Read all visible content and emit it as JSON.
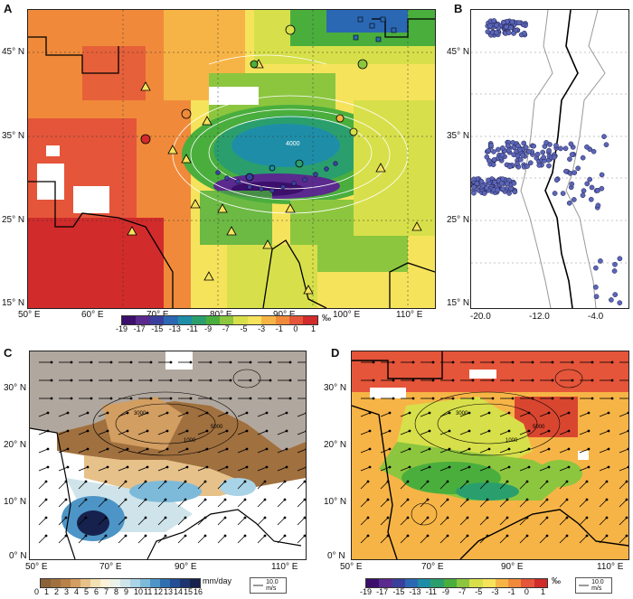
{
  "panels": {
    "a": {
      "letter": "A",
      "lon_labels": [
        "50° E",
        "60° E",
        "70° E",
        "80° E",
        "90° E",
        "100° E",
        "110° E"
      ],
      "lat_labels": [
        "45° N",
        "35° N",
        "25° N",
        "15° N"
      ],
      "colorbar_ticks": [
        "-19",
        "-17",
        "-15",
        "-13",
        "-11",
        "-9",
        "-7",
        "-5",
        "-3",
        "-1",
        "0",
        "1"
      ],
      "unit": "‰",
      "contour_label": "4000"
    },
    "b": {
      "letter": "B",
      "lat_labels": [
        "45° N",
        "35° N",
        "25° N",
        "15° N"
      ],
      "x_ticks": [
        "-20.0",
        "-12.0",
        "-4.0"
      ]
    },
    "c": {
      "letter": "C",
      "lon_labels": [
        "50° E",
        "70° E",
        "90° E",
        "110° E"
      ],
      "lat_labels": [
        "30° N",
        "20° N",
        "10° N",
        "0° N"
      ],
      "colorbar_ticks": [
        "0",
        "1",
        "2",
        "3",
        "4",
        "5",
        "6",
        "7",
        "8",
        "9",
        "10",
        "11",
        "12",
        "13",
        "14",
        "15",
        "16"
      ],
      "unit": "mm/day",
      "vector_legend": "10.0 m/s",
      "contour_labels": [
        "3000",
        "1000",
        "5000"
      ]
    },
    "d": {
      "letter": "D",
      "lon_labels": [
        "50° E",
        "70° E",
        "90° E",
        "110° E"
      ],
      "lat_labels": [
        "30° N",
        "20° N",
        "10° N",
        "0° N"
      ],
      "colorbar_ticks": [
        "-19",
        "-17",
        "-15",
        "-13",
        "-11",
        "-9",
        "-7",
        "-5",
        "-3",
        "-1",
        "0",
        "1"
      ],
      "unit": "‰",
      "vector_legend": "10.0 m/s",
      "contour_labels": [
        "3000",
        "1000",
        "5000"
      ]
    }
  },
  "colors": {
    "d18o_scale": [
      "#3b0f6b",
      "#5a2a8e",
      "#3a3f9e",
      "#2b68b3",
      "#1e8ea8",
      "#2a9f6d",
      "#4aae3d",
      "#8cc63f",
      "#d7e04a",
      "#f6e35c",
      "#f7b446",
      "#f08a3a",
      "#e4553a",
      "#d12b2b"
    ],
    "precip_scale": [
      "#8c6239",
      "#a0703f",
      "#b98048",
      "#d29e61",
      "#e7c18a",
      "#f3e0b3",
      "#fbf3d9",
      "#eaf2e9",
      "#cfe4ea",
      "#a9d3e6",
      "#7dbad9",
      "#4d95c6",
      "#2e6fb1",
      "#234e96",
      "#1d3470",
      "#16224d"
    ],
    "no_data": "#b0a79e"
  }
}
